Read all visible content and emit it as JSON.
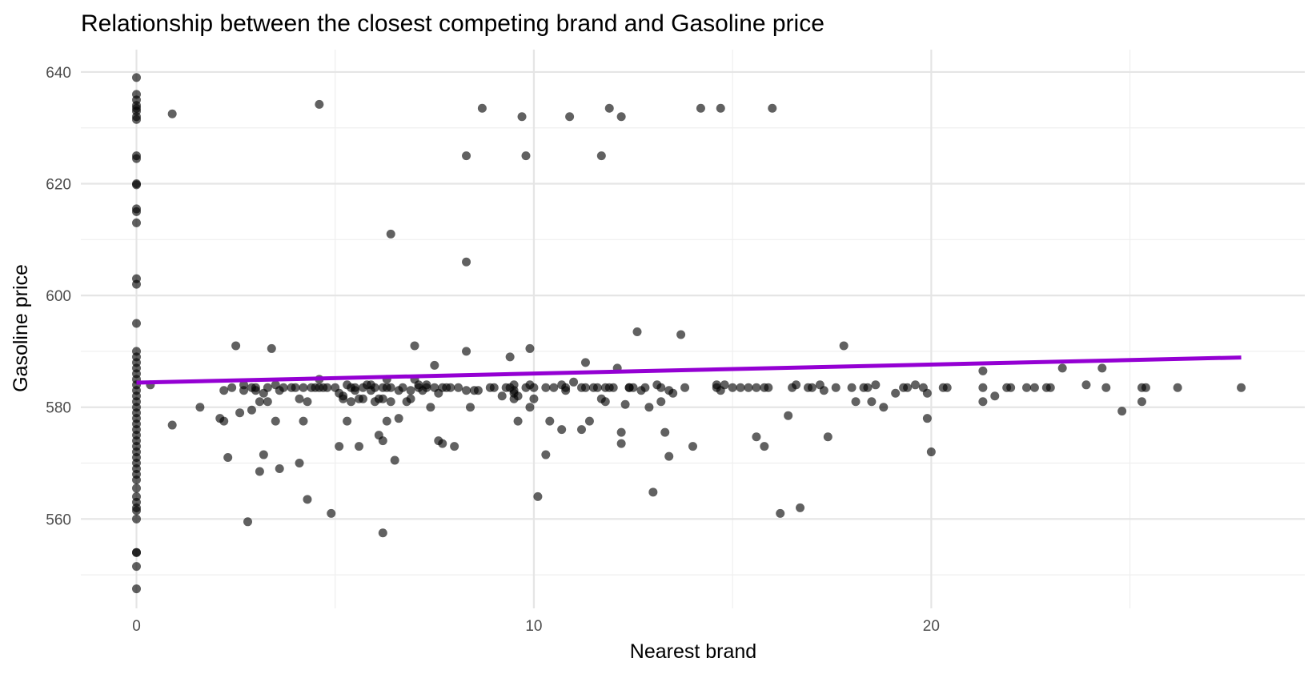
{
  "chart_data": {
    "type": "scatter",
    "title": "Relationship between the closest competing brand and Gasoline price",
    "xlabel": "Nearest brand",
    "ylabel": "Gasoline price",
    "xlim": [
      -1.4,
      29.4
    ],
    "ylim": [
      544,
      644
    ],
    "x_ticks": [
      0,
      10,
      20
    ],
    "x_minor_ticks": [
      -5,
      5,
      15,
      25
    ],
    "y_ticks": [
      560,
      580,
      600,
      620,
      640
    ],
    "y_minor_ticks": [
      550,
      570,
      590,
      610,
      630
    ],
    "grid": true,
    "legend": "none",
    "colors": {
      "points": "#000000",
      "trend": "#9400d3",
      "grid": "#e5e5e5"
    },
    "trend_line": {
      "x": [
        0,
        27.8
      ],
      "y": [
        584.4,
        588.9
      ]
    },
    "series": [
      {
        "points": [
          [
            0,
            639
          ],
          [
            0,
            636
          ],
          [
            0,
            635
          ],
          [
            0,
            634
          ],
          [
            0,
            633.5
          ],
          [
            0,
            633
          ],
          [
            0,
            632
          ],
          [
            0,
            631.5
          ],
          [
            0,
            625
          ],
          [
            0,
            624.5
          ],
          [
            0,
            620
          ],
          [
            0,
            619.8
          ],
          [
            0,
            615.5
          ],
          [
            0,
            615
          ],
          [
            0,
            613
          ],
          [
            0,
            603
          ],
          [
            0,
            602
          ],
          [
            0,
            595
          ],
          [
            0,
            590
          ],
          [
            0,
            589
          ],
          [
            0,
            588
          ],
          [
            0,
            587
          ],
          [
            0,
            586
          ],
          [
            0,
            585
          ],
          [
            0,
            584
          ],
          [
            0,
            583
          ],
          [
            0,
            582
          ],
          [
            0,
            581
          ],
          [
            0,
            580
          ],
          [
            0,
            579
          ],
          [
            0,
            578
          ],
          [
            0,
            577
          ],
          [
            0,
            576
          ],
          [
            0,
            575
          ],
          [
            0,
            574
          ],
          [
            0,
            573
          ],
          [
            0,
            572
          ],
          [
            0,
            571
          ],
          [
            0,
            570
          ],
          [
            0,
            569
          ],
          [
            0,
            568
          ],
          [
            0,
            567
          ],
          [
            0,
            565.5
          ],
          [
            0,
            564
          ],
          [
            0,
            563
          ],
          [
            0,
            562
          ],
          [
            0,
            561.5
          ],
          [
            0,
            560
          ],
          [
            0,
            554
          ],
          [
            0,
            554
          ],
          [
            0,
            551.5
          ],
          [
            0,
            547.5
          ],
          [
            0.9,
            632.5
          ],
          [
            0.35,
            584
          ],
          [
            0.9,
            576.8
          ],
          [
            1.6,
            580
          ],
          [
            2.1,
            578
          ],
          [
            2.2,
            577.5
          ],
          [
            2.2,
            583
          ],
          [
            2.3,
            571
          ],
          [
            2.4,
            583.5
          ],
          [
            2.5,
            591
          ],
          [
            2.6,
            579
          ],
          [
            2.7,
            584
          ],
          [
            2.7,
            583
          ],
          [
            2.9,
            579.5
          ],
          [
            2.8,
            559.5
          ],
          [
            2.9,
            583.5
          ],
          [
            3.0,
            583.5
          ],
          [
            3.0,
            583
          ],
          [
            3.1,
            581
          ],
          [
            3.1,
            568.5
          ],
          [
            3.2,
            571.5
          ],
          [
            3.2,
            582.5
          ],
          [
            3.3,
            581
          ],
          [
            3.3,
            583.5
          ],
          [
            3.4,
            590.5
          ],
          [
            3.5,
            577.5
          ],
          [
            3.5,
            584
          ],
          [
            3.6,
            583
          ],
          [
            3.6,
            569
          ],
          [
            3.7,
            583.5
          ],
          [
            3.9,
            583.5
          ],
          [
            4.0,
            583.5
          ],
          [
            4.1,
            581.5
          ],
          [
            4.1,
            570
          ],
          [
            4.2,
            577.5
          ],
          [
            4.3,
            581
          ],
          [
            4.2,
            583.5
          ],
          [
            4.3,
            563.5
          ],
          [
            4.4,
            583.5
          ],
          [
            4.6,
            583.5
          ],
          [
            4.6,
            585
          ],
          [
            4.7,
            583.5
          ],
          [
            4.6,
            634.2
          ],
          [
            4.5,
            583.5
          ],
          [
            4.8,
            583.5
          ],
          [
            4.9,
            561
          ],
          [
            5.0,
            583.5
          ],
          [
            5.1,
            582.5
          ],
          [
            5.1,
            573
          ],
          [
            5.2,
            582
          ],
          [
            5.2,
            581.5
          ],
          [
            5.3,
            584
          ],
          [
            5.3,
            577.5
          ],
          [
            5.4,
            581
          ],
          [
            5.4,
            583.5
          ],
          [
            5.5,
            583.5
          ],
          [
            5.5,
            583
          ],
          [
            5.6,
            581.5
          ],
          [
            5.6,
            573
          ],
          [
            5.7,
            583.5
          ],
          [
            5.7,
            581.5
          ],
          [
            5.8,
            584
          ],
          [
            5.9,
            583
          ],
          [
            5.9,
            584
          ],
          [
            6.0,
            581
          ],
          [
            6.0,
            583.5
          ],
          [
            6.1,
            581.5
          ],
          [
            6.2,
            581.5
          ],
          [
            6.2,
            583.5
          ],
          [
            6.2,
            557.5
          ],
          [
            6.1,
            575
          ],
          [
            6.2,
            574
          ],
          [
            6.3,
            585
          ],
          [
            6.3,
            583.5
          ],
          [
            6.3,
            577.5
          ],
          [
            6.4,
            581
          ],
          [
            6.4,
            583.5
          ],
          [
            6.5,
            570.5
          ],
          [
            6.4,
            611
          ],
          [
            6.6,
            583
          ],
          [
            6.6,
            578
          ],
          [
            6.7,
            583.5
          ],
          [
            6.8,
            581
          ],
          [
            6.9,
            581.5
          ],
          [
            6.9,
            583
          ],
          [
            7.0,
            585
          ],
          [
            7.0,
            591
          ],
          [
            7.1,
            583.5
          ],
          [
            7.1,
            584
          ],
          [
            7.2,
            583
          ],
          [
            7.3,
            584
          ],
          [
            7.3,
            583.5
          ],
          [
            7.4,
            580
          ],
          [
            7.5,
            583.5
          ],
          [
            7.5,
            587.5
          ],
          [
            7.6,
            574
          ],
          [
            7.6,
            582.5
          ],
          [
            7.7,
            573.5
          ],
          [
            7.7,
            583.5
          ],
          [
            7.8,
            583.5
          ],
          [
            7.9,
            583.5
          ],
          [
            8.0,
            573
          ],
          [
            8.1,
            583.5
          ],
          [
            8.3,
            583
          ],
          [
            8.3,
            590
          ],
          [
            8.3,
            606
          ],
          [
            8.3,
            625
          ],
          [
            8.5,
            583
          ],
          [
            8.4,
            580
          ],
          [
            8.6,
            583
          ],
          [
            8.7,
            633.5
          ],
          [
            8.9,
            583.5
          ],
          [
            9.0,
            583.5
          ],
          [
            9.2,
            582
          ],
          [
            9.3,
            583.5
          ],
          [
            9.4,
            589
          ],
          [
            9.4,
            583.5
          ],
          [
            9.5,
            582.5
          ],
          [
            9.5,
            584
          ],
          [
            9.5,
            583
          ],
          [
            9.5,
            581.5
          ],
          [
            9.6,
            577.5
          ],
          [
            9.6,
            582
          ],
          [
            9.7,
            632
          ],
          [
            9.8,
            625
          ],
          [
            9.8,
            583.5
          ],
          [
            9.9,
            580
          ],
          [
            9.9,
            584
          ],
          [
            9.9,
            590.5
          ],
          [
            10.0,
            581.5
          ],
          [
            10.0,
            583.5
          ],
          [
            10.1,
            564
          ],
          [
            10.3,
            571.5
          ],
          [
            10.3,
            583.5
          ],
          [
            10.4,
            577.5
          ],
          [
            10.5,
            583.5
          ],
          [
            10.7,
            584
          ],
          [
            10.7,
            576
          ],
          [
            10.8,
            583.5
          ],
          [
            10.8,
            583
          ],
          [
            10.9,
            632
          ],
          [
            11.0,
            584.5
          ],
          [
            11.2,
            583.5
          ],
          [
            11.2,
            576
          ],
          [
            11.3,
            588
          ],
          [
            11.3,
            583.5
          ],
          [
            11.4,
            577.5
          ],
          [
            11.5,
            583.5
          ],
          [
            11.6,
            583.5
          ],
          [
            11.7,
            581.5
          ],
          [
            11.7,
            625
          ],
          [
            11.8,
            583.5
          ],
          [
            11.8,
            581
          ],
          [
            11.9,
            633.5
          ],
          [
            11.9,
            583.5
          ],
          [
            12.1,
            587
          ],
          [
            12.0,
            583.5
          ],
          [
            12.2,
            575.5
          ],
          [
            12.3,
            580.5
          ],
          [
            12.2,
            573.5
          ],
          [
            12.2,
            632
          ],
          [
            12.4,
            583.5
          ],
          [
            12.4,
            583.5
          ],
          [
            12.5,
            583.5
          ],
          [
            12.6,
            593.5
          ],
          [
            12.7,
            583
          ],
          [
            12.8,
            583.5
          ],
          [
            12.9,
            580
          ],
          [
            13.0,
            564.8
          ],
          [
            13.1,
            584
          ],
          [
            13.2,
            583.5
          ],
          [
            13.2,
            581
          ],
          [
            13.3,
            575.5
          ],
          [
            13.4,
            571.2
          ],
          [
            13.4,
            583
          ],
          [
            13.5,
            582.5
          ],
          [
            13.7,
            593
          ],
          [
            13.8,
            583.5
          ],
          [
            14.0,
            573
          ],
          [
            14.2,
            633.5
          ],
          [
            14.7,
            633.5
          ],
          [
            14.6,
            583.5
          ],
          [
            14.6,
            584
          ],
          [
            14.7,
            583
          ],
          [
            14.8,
            584
          ],
          [
            15.0,
            583.5
          ],
          [
            15.2,
            583.5
          ],
          [
            15.4,
            583.5
          ],
          [
            15.6,
            574.7
          ],
          [
            15.6,
            583.5
          ],
          [
            15.8,
            583.5
          ],
          [
            15.8,
            573
          ],
          [
            15.9,
            583.5
          ],
          [
            16.0,
            633.5
          ],
          [
            16.2,
            561
          ],
          [
            16.4,
            578.5
          ],
          [
            16.5,
            583.5
          ],
          [
            16.6,
            584
          ],
          [
            16.7,
            562
          ],
          [
            16.9,
            583.5
          ],
          [
            17.0,
            583.5
          ],
          [
            17.2,
            584
          ],
          [
            17.3,
            583
          ],
          [
            17.4,
            574.7
          ],
          [
            17.6,
            583.5
          ],
          [
            17.8,
            591
          ],
          [
            18.0,
            583.5
          ],
          [
            18.1,
            581
          ],
          [
            18.3,
            583.5
          ],
          [
            18.4,
            583.5
          ],
          [
            18.5,
            581
          ],
          [
            18.6,
            584
          ],
          [
            18.8,
            580
          ],
          [
            19.1,
            582.5
          ],
          [
            19.3,
            583.5
          ],
          [
            19.4,
            583.5
          ],
          [
            19.6,
            584
          ],
          [
            19.8,
            583.5
          ],
          [
            19.9,
            582.5
          ],
          [
            19.9,
            578
          ],
          [
            20.0,
            572
          ],
          [
            20.3,
            583.5
          ],
          [
            20.4,
            583.5
          ],
          [
            21.3,
            581
          ],
          [
            21.3,
            586.5
          ],
          [
            21.3,
            583.5
          ],
          [
            21.6,
            582
          ],
          [
            21.9,
            583.5
          ],
          [
            22.0,
            583.5
          ],
          [
            22.4,
            583.5
          ],
          [
            22.6,
            583.5
          ],
          [
            22.9,
            583.5
          ],
          [
            23.0,
            583.5
          ],
          [
            23.3,
            587
          ],
          [
            23.9,
            584
          ],
          [
            24.3,
            587
          ],
          [
            24.4,
            583.5
          ],
          [
            24.8,
            579.3
          ],
          [
            25.3,
            581
          ],
          [
            25.3,
            583.5
          ],
          [
            25.4,
            583.5
          ],
          [
            26.2,
            583.5
          ],
          [
            27.8,
            583.5
          ]
        ]
      }
    ]
  }
}
